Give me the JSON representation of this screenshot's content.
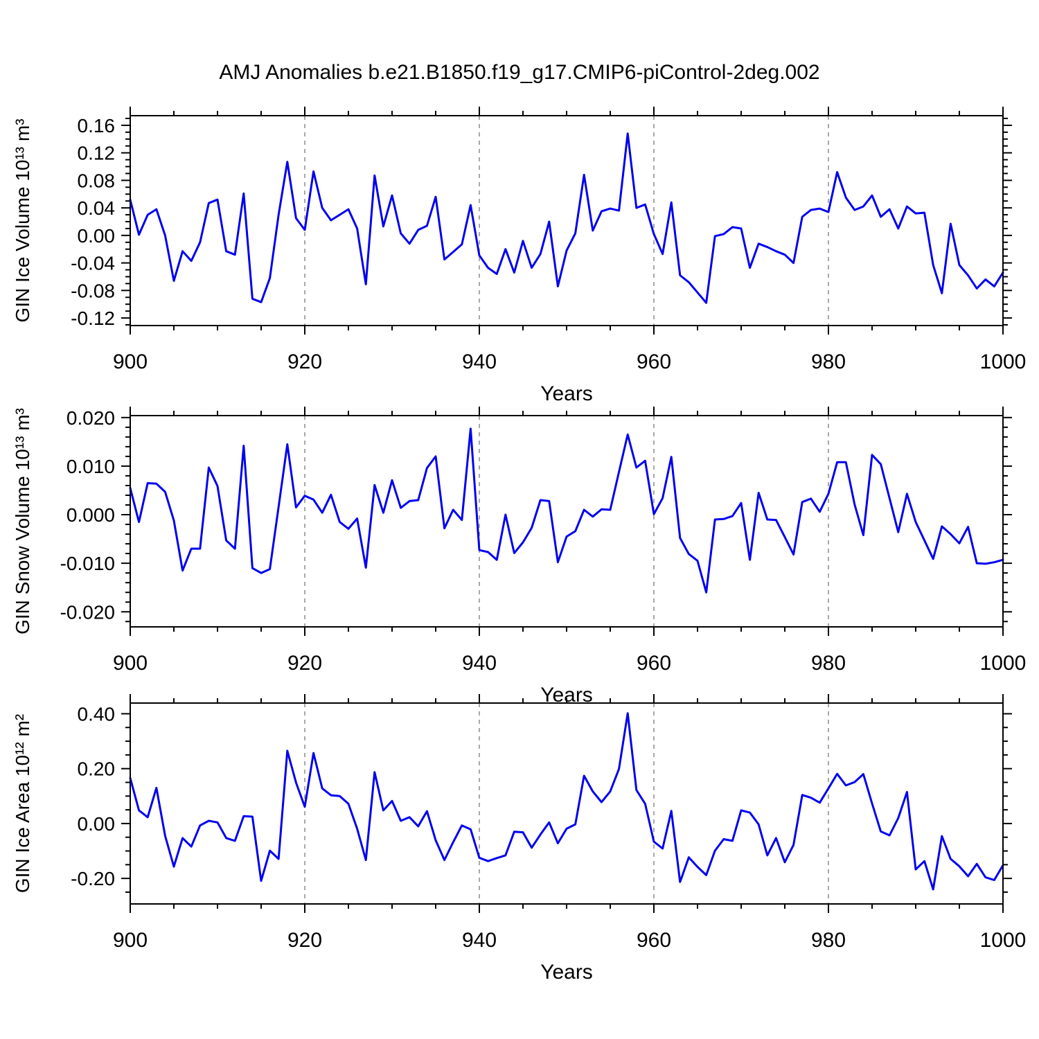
{
  "title": "AMJ Anomalies b.e21.B1850.f19_g17.CMIP6-piControl-2deg.002",
  "line_color": "#0000f0",
  "gridline_color": "#7a7a7a",
  "axis_color": "#000000",
  "chart_data": [
    {
      "type": "line",
      "ylabel": "GIN Ice Volume 10¹³ m³",
      "xlabel": "Years",
      "x_start": 900,
      "x_end": 1000,
      "x_step": 1,
      "xticks": [
        900,
        920,
        940,
        960,
        980,
        1000
      ],
      "xtick_labels": [
        "900",
        "920",
        "940",
        "960",
        "980",
        "1000"
      ],
      "x_minor_step": 5,
      "gridline_years": [
        920,
        940,
        960,
        980
      ],
      "ylim": [
        -0.131,
        0.174
      ],
      "ytick_values": [
        -0.12,
        -0.08,
        -0.04,
        0.0,
        0.04,
        0.08,
        0.12,
        0.16
      ],
      "ytick_labels": [
        "-0.12",
        "-0.08",
        "-0.04",
        "0.00",
        "0.04",
        "0.08",
        "0.12",
        "0.16"
      ],
      "y_major_step": 0.04,
      "y_minor_step": 0.01,
      "values": [
        0.052,
        0.001,
        0.03,
        0.038,
        0.0,
        -0.066,
        -0.023,
        -0.037,
        -0.01,
        0.047,
        0.052,
        -0.023,
        -0.028,
        0.061,
        -0.092,
        -0.097,
        -0.062,
        0.03,
        0.107,
        0.025,
        0.008,
        0.093,
        0.04,
        0.022,
        0.03,
        0.038,
        0.01,
        -0.071,
        0.087,
        0.013,
        0.058,
        0.003,
        -0.012,
        0.008,
        0.014,
        0.056,
        -0.035,
        -0.024,
        -0.013,
        0.044,
        -0.029,
        -0.047,
        -0.056,
        -0.02,
        -0.054,
        -0.008,
        -0.047,
        -0.027,
        0.02,
        -0.074,
        -0.022,
        0.003,
        0.088,
        0.007,
        0.035,
        0.039,
        0.036,
        0.148,
        0.04,
        0.045,
        0.002,
        -0.027,
        0.048,
        -0.058,
        -0.068,
        -0.083,
        -0.098,
        -0.001,
        0.002,
        0.012,
        0.01,
        -0.047,
        -0.012,
        -0.017,
        -0.023,
        -0.028,
        -0.04,
        0.027,
        0.037,
        0.039,
        0.034,
        0.092,
        0.055,
        0.037,
        0.042,
        0.058,
        0.027,
        0.038,
        0.01,
        0.042,
        0.032,
        0.033,
        -0.043,
        -0.084,
        0.017,
        -0.043,
        -0.058,
        -0.077,
        -0.064,
        -0.074,
        -0.054
      ]
    },
    {
      "type": "line",
      "ylabel": "GIN Snow Volume 10¹³ m³",
      "xlabel": "Years",
      "x_start": 900,
      "x_end": 1000,
      "x_step": 1,
      "xticks": [
        900,
        920,
        940,
        960,
        980,
        1000
      ],
      "xtick_labels": [
        "900",
        "920",
        "940",
        "960",
        "980",
        "1000"
      ],
      "x_minor_step": 5,
      "gridline_years": [
        920,
        940,
        960,
        980
      ],
      "ylim": [
        -0.0231,
        0.0204
      ],
      "ytick_values": [
        -0.02,
        -0.01,
        0.0,
        0.01,
        0.02
      ],
      "ytick_labels": [
        "-0.020",
        "-0.010",
        "0.000",
        "0.010",
        "0.020"
      ],
      "y_major_step": 0.01,
      "y_minor_step": 0.002,
      "values": [
        0.0055,
        -0.0015,
        0.0065,
        0.0064,
        0.0047,
        -0.0012,
        -0.0115,
        -0.007,
        -0.007,
        0.0097,
        0.0059,
        -0.0053,
        -0.007,
        0.0142,
        -0.011,
        -0.012,
        -0.0112,
        0.0016,
        0.0145,
        0.0015,
        0.0039,
        0.0031,
        0.0004,
        0.0041,
        -0.0015,
        -0.0029,
        -0.0008,
        -0.0109,
        0.0061,
        0.0004,
        0.0071,
        0.0014,
        0.0028,
        0.003,
        0.0096,
        0.012,
        -0.0028,
        0.001,
        -0.0011,
        0.0177,
        -0.0073,
        -0.0077,
        -0.0093,
        0.0,
        -0.0079,
        -0.0057,
        -0.0027,
        0.003,
        0.0028,
        -0.0098,
        -0.0045,
        -0.0034,
        0.001,
        -0.0004,
        0.0011,
        0.001,
        0.0088,
        0.0165,
        0.0097,
        0.0111,
        0.0001,
        0.0034,
        0.0119,
        -0.0048,
        -0.0081,
        -0.0095,
        -0.016,
        -0.001,
        -0.0009,
        -0.0003,
        0.0024,
        -0.0093,
        0.0045,
        -0.001,
        -0.0011,
        -0.0046,
        -0.0082,
        0.0026,
        0.0033,
        0.0006,
        0.0043,
        0.0108,
        0.0108,
        0.0021,
        -0.0042,
        0.0123,
        0.0104,
        0.0034,
        -0.0036,
        0.0043,
        -0.0015,
        -0.0053,
        -0.0091,
        -0.0024,
        -0.004,
        -0.0059,
        -0.0025,
        -0.01,
        -0.0101,
        -0.0098,
        -0.0093
      ]
    },
    {
      "type": "line",
      "ylabel": "GIN Ice Area 10¹² m²",
      "xlabel": "Years",
      "x_start": 900,
      "x_end": 1000,
      "x_step": 1,
      "xticks": [
        900,
        920,
        940,
        960,
        980,
        1000
      ],
      "xtick_labels": [
        "900",
        "920",
        "940",
        "960",
        "980",
        "1000"
      ],
      "x_minor_step": 5,
      "gridline_years": [
        920,
        940,
        960,
        980
      ],
      "ylim": [
        -0.293,
        0.439
      ],
      "ytick_values": [
        -0.2,
        0.0,
        0.2,
        0.4
      ],
      "ytick_labels": [
        "-0.20",
        "0.00",
        "0.20",
        "0.40"
      ],
      "y_major_step": 0.2,
      "y_minor_step": 0.05,
      "values": [
        0.166,
        0.048,
        0.023,
        0.13,
        -0.045,
        -0.157,
        -0.053,
        -0.084,
        -0.007,
        0.01,
        0.004,
        -0.053,
        -0.063,
        0.027,
        0.025,
        -0.209,
        -0.099,
        -0.129,
        0.265,
        0.149,
        0.061,
        0.257,
        0.128,
        0.103,
        0.1,
        0.072,
        -0.019,
        -0.133,
        0.187,
        0.048,
        0.082,
        0.01,
        0.023,
        -0.01,
        0.045,
        -0.061,
        -0.133,
        -0.068,
        -0.007,
        -0.021,
        -0.125,
        -0.137,
        -0.126,
        -0.116,
        -0.03,
        -0.032,
        -0.088,
        -0.04,
        0.004,
        -0.072,
        -0.019,
        -0.003,
        0.174,
        0.117,
        0.078,
        0.117,
        0.199,
        0.402,
        0.122,
        0.072,
        -0.066,
        -0.091,
        0.046,
        -0.213,
        -0.123,
        -0.158,
        -0.188,
        -0.099,
        -0.057,
        -0.063,
        0.048,
        0.04,
        -0.003,
        -0.116,
        -0.053,
        -0.141,
        -0.078,
        0.104,
        0.094,
        0.076,
        0.128,
        0.181,
        0.139,
        0.151,
        0.18,
        0.073,
        -0.029,
        -0.043,
        0.02,
        0.115,
        -0.167,
        -0.137,
        -0.24,
        -0.046,
        -0.129,
        -0.156,
        -0.192,
        -0.147,
        -0.196,
        -0.206,
        -0.152
      ]
    }
  ]
}
